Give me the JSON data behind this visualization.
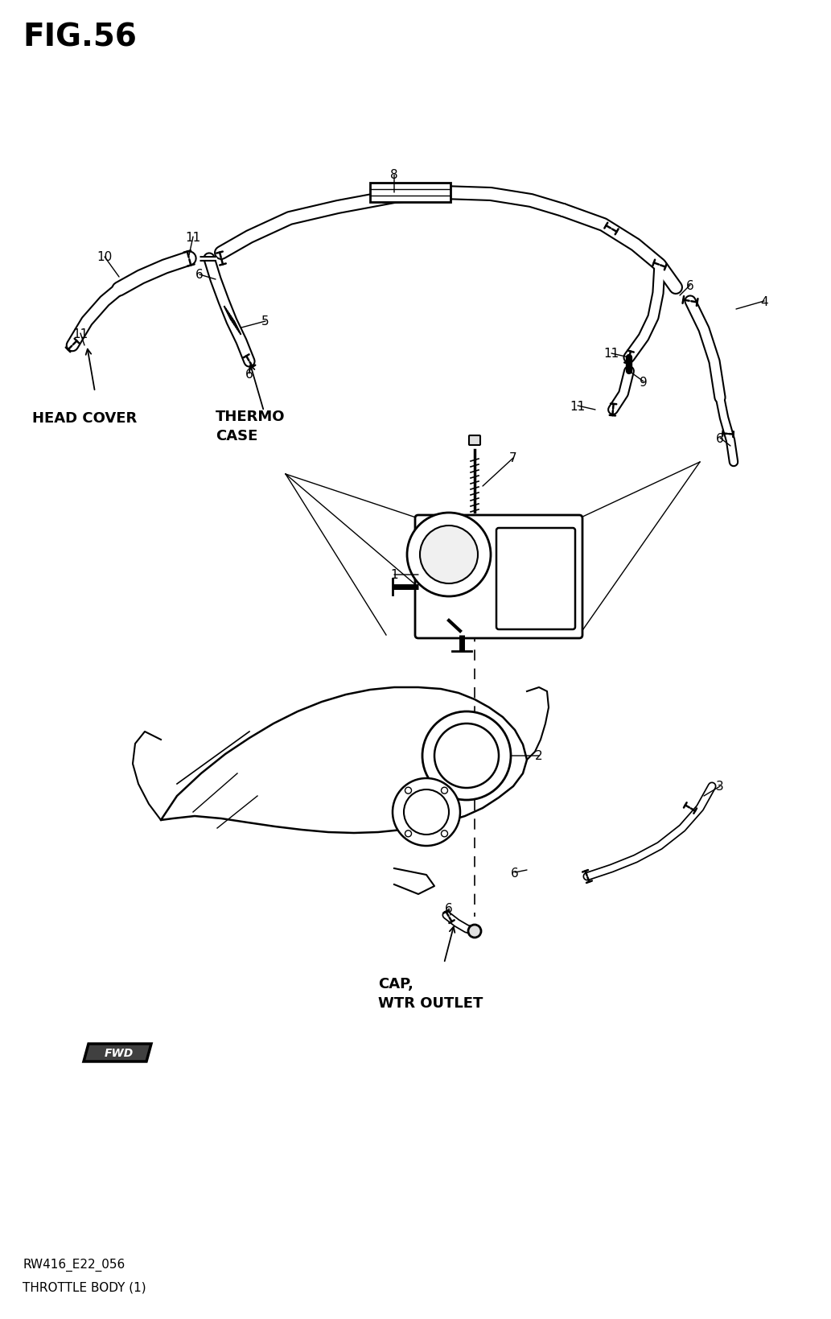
{
  "title": "FIG.56",
  "footer_line1": "RW416_E22_056",
  "footer_line2": "THROTTLE BODY (1)",
  "bg_color": "#ffffff",
  "line_color": "#000000",
  "fig_width": 10.33,
  "fig_height": 16.4,
  "dpi": 100
}
